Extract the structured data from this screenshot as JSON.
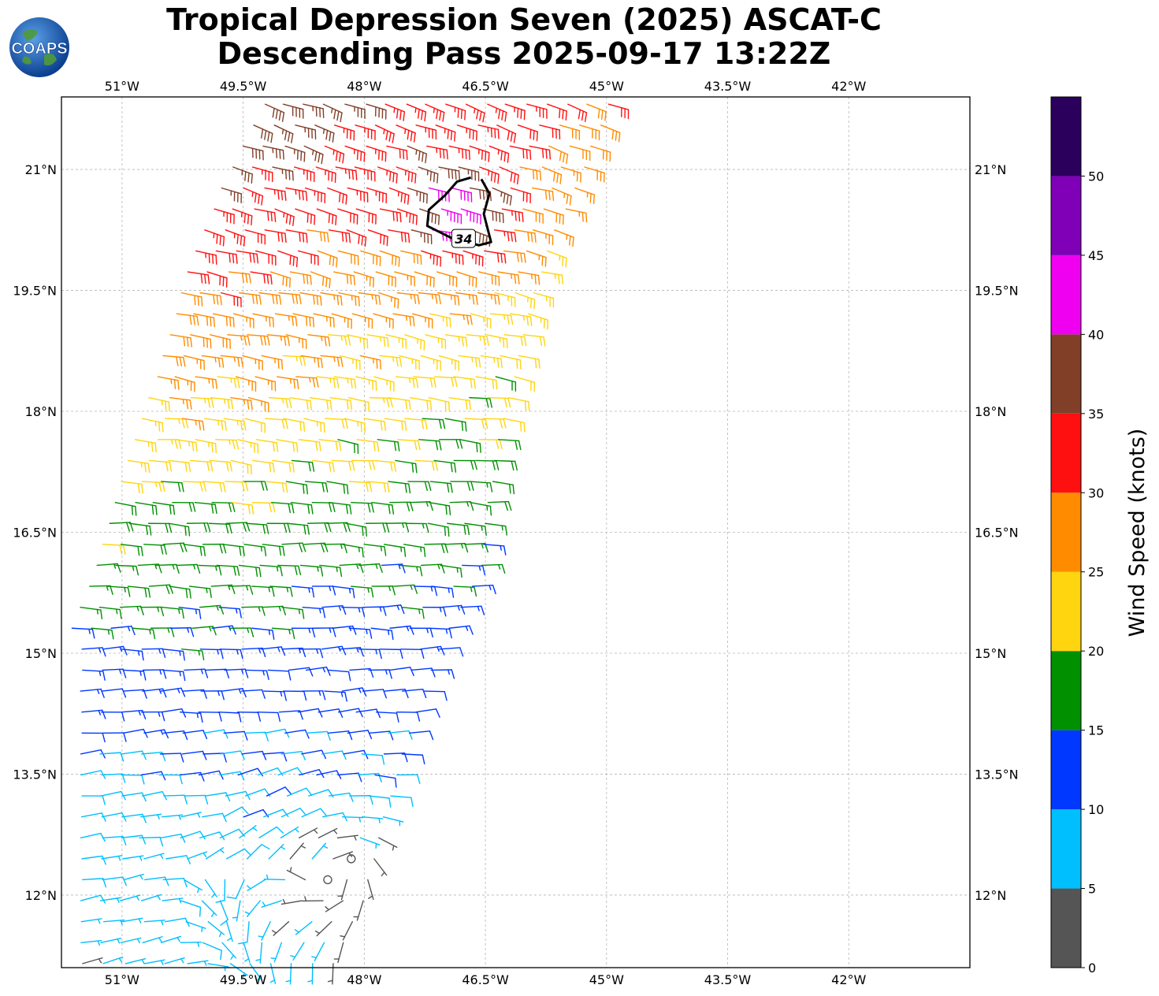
{
  "title": {
    "line1": "Tropical Depression Seven (2025) ASCAT-C",
    "line2": "Descending Pass 2025-09-17 13:22Z"
  },
  "logo": {
    "text": "COAPS",
    "icon": "globe-icon"
  },
  "map": {
    "lon_range": [
      -51.75,
      -40.5
    ],
    "lat_range": [
      11.1,
      21.9
    ],
    "lon_ticks": [
      {
        "value": -51,
        "label": "51°W"
      },
      {
        "value": -49.5,
        "label": "49.5°W"
      },
      {
        "value": -48,
        "label": "48°W"
      },
      {
        "value": -46.5,
        "label": "46.5°W"
      },
      {
        "value": -45,
        "label": "45°W"
      },
      {
        "value": -43.5,
        "label": "43.5°W"
      },
      {
        "value": -42,
        "label": "42°W"
      }
    ],
    "lat_ticks": [
      {
        "value": 21,
        "label": "21°N"
      },
      {
        "value": 19.5,
        "label": "19.5°N"
      },
      {
        "value": 18,
        "label": "18°N"
      },
      {
        "value": 16.5,
        "label": "16.5°N"
      },
      {
        "value": 15,
        "label": "15°N"
      },
      {
        "value": 13.5,
        "label": "13.5°N"
      },
      {
        "value": 12,
        "label": "12°N"
      }
    ],
    "grid": true,
    "contour_34kt": {
      "label": "34",
      "points": [
        [
          -46.55,
          20.88
        ],
        [
          -46.45,
          20.7
        ],
        [
          -46.52,
          20.45
        ],
        [
          -46.43,
          20.1
        ],
        [
          -46.58,
          20.06
        ],
        [
          -46.92,
          20.15
        ],
        [
          -47.22,
          20.3
        ],
        [
          -47.2,
          20.5
        ],
        [
          -47.0,
          20.68
        ],
        [
          -46.85,
          20.85
        ],
        [
          -46.68,
          20.9
        ]
      ]
    },
    "calm_center": {
      "lon": -48.3,
      "lat": 12.22
    }
  },
  "colorbar": {
    "title": "Wind Speed (knots)",
    "bins": [
      {
        "min": 0,
        "max": 5,
        "color": "#555555"
      },
      {
        "min": 5,
        "max": 10,
        "color": "#00bfff"
      },
      {
        "min": 10,
        "max": 15,
        "color": "#0038ff"
      },
      {
        "min": 15,
        "max": 20,
        "color": "#009000"
      },
      {
        "min": 20,
        "max": 25,
        "color": "#ffd510"
      },
      {
        "min": 25,
        "max": 30,
        "color": "#ff8c00"
      },
      {
        "min": 30,
        "max": 35,
        "color": "#ff1010"
      },
      {
        "min": 35,
        "max": 40,
        "color": "#813f28"
      },
      {
        "min": 40,
        "max": 45,
        "color": "#f000f0"
      },
      {
        "min": 45,
        "max": 50,
        "color": "#8000b8"
      },
      {
        "min": 50,
        "max": 55,
        "color": "#2b005c"
      }
    ],
    "tick_labels": [
      "0",
      "5",
      "10",
      "15",
      "20",
      "25",
      "30",
      "35",
      "40",
      "45",
      "50"
    ]
  },
  "swath": {
    "lat_min": 11.1,
    "lat_max": 21.9,
    "left_edge": [
      [
        11.1,
        -51.75
      ],
      [
        14.0,
        -51.75
      ],
      [
        15.0,
        -51.75
      ],
      [
        16.0,
        -51.35
      ],
      [
        17.0,
        -51.05
      ],
      [
        18.0,
        -50.7
      ],
      [
        19.0,
        -50.4
      ],
      [
        20.0,
        -50.1
      ],
      [
        21.0,
        -49.65
      ],
      [
        21.9,
        -49.2
      ]
    ],
    "right_edge": [
      [
        11.1,
        -48.4
      ],
      [
        12.0,
        -48.0
      ],
      [
        13.0,
        -47.75
      ],
      [
        14.0,
        -47.45
      ],
      [
        15.0,
        -47.1
      ],
      [
        16.0,
        -46.55
      ],
      [
        17.0,
        -46.45
      ],
      [
        18.0,
        -46.25
      ],
      [
        19.0,
        -46.0
      ],
      [
        20.0,
        -45.75
      ],
      [
        21.0,
        -45.3
      ],
      [
        21.9,
        -44.95
      ]
    ]
  }
}
